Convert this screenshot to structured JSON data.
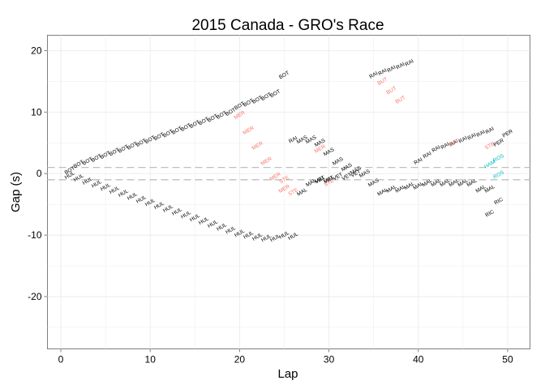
{
  "chart_data": {
    "type": "scatter",
    "title": "2015 Canada - GRO's Race",
    "xlabel": "Lap",
    "ylabel": "Gap (s)",
    "xlim": [
      -1.5,
      52.5
    ],
    "ylim": [
      -28.5,
      22.5
    ],
    "xticks": [
      0,
      10,
      20,
      30,
      40,
      50
    ],
    "yticks": [
      -20,
      -10,
      0,
      10,
      20
    ],
    "reference_lines": [
      1,
      -1
    ],
    "grid": true,
    "background": "#ffffff",
    "colors": {
      "grid": "#ebebeb",
      "frame": "#7f7f7f",
      "reference_line": "#bfbfbf",
      "default_label": "#000000",
      "highlight_red": "#f8766d",
      "highlight_teal": "#00bfc4"
    },
    "series": [
      {
        "label": "BOT",
        "color": "#000000",
        "x": [
          1,
          2,
          3,
          4,
          5,
          6,
          7,
          8,
          9,
          10,
          11,
          12,
          13,
          14,
          15,
          16,
          17,
          18,
          19,
          20,
          21,
          22,
          23,
          24,
          25
        ],
        "y": [
          0.5,
          1.5,
          2.0,
          2.5,
          3.0,
          3.5,
          4.0,
          4.5,
          5.0,
          5.5,
          6.0,
          6.5,
          7.0,
          7.5,
          8.0,
          8.5,
          9.0,
          9.5,
          10.0,
          11.0,
          11.5,
          12.0,
          12.5,
          13.0,
          16.0
        ]
      },
      {
        "label": "HUL",
        "color": "#000000",
        "x": [
          1,
          2,
          3,
          4,
          5,
          6,
          7,
          8,
          9,
          10,
          11,
          12,
          13,
          14,
          15,
          16,
          17,
          18,
          19,
          20,
          21,
          22,
          23,
          24,
          25,
          26
        ],
        "y": [
          -0.3,
          -0.7,
          -1.2,
          -1.7,
          -2.2,
          -2.7,
          -3.2,
          -3.7,
          -4.2,
          -4.7,
          -5.2,
          -5.7,
          -6.2,
          -6.7,
          -7.2,
          -7.7,
          -8.2,
          -8.7,
          -9.2,
          -9.7,
          -10.0,
          -10.3,
          -10.5,
          -10.5,
          -10.0,
          -10.2
        ]
      },
      {
        "label": "MER",
        "color": "#f8766d",
        "x": [
          20,
          21,
          22,
          23,
          24,
          25
        ],
        "y": [
          9.5,
          7.0,
          4.5,
          2.0,
          -0.5,
          -2.5
        ]
      },
      {
        "label": "STE",
        "color": "#f8766d",
        "x": [
          25,
          26
        ],
        "y": [
          -1.0,
          -3.0
        ]
      },
      {
        "label": "RAI",
        "color": "#000000",
        "x": [
          26,
          35,
          36,
          37,
          38,
          39,
          40,
          41,
          42,
          43,
          44,
          45,
          46,
          47,
          48
        ],
        "y": [
          5.5,
          16.0,
          16.5,
          17.0,
          17.5,
          18.0,
          2.0,
          3.0,
          4.0,
          4.5,
          5.0,
          5.5,
          6.0,
          6.5,
          7.0
        ]
      },
      {
        "label": "MAS",
        "color": "#000000",
        "x": [
          27,
          28,
          29,
          30,
          31,
          32,
          33,
          34,
          35
        ],
        "y": [
          5.5,
          5.5,
          5.0,
          3.5,
          2.0,
          1.0,
          0.5,
          0.0,
          -1.5
        ]
      },
      {
        "label": "MAL",
        "color": "#000000",
        "x": [
          27,
          28,
          29,
          30,
          36,
          37,
          38,
          39,
          40,
          41,
          42,
          43,
          44,
          45,
          46,
          47,
          48
        ],
        "y": [
          -3.0,
          -1.5,
          -1.0,
          -1.0,
          -3.0,
          -2.5,
          -2.5,
          -2.0,
          -2.0,
          -1.5,
          -1.5,
          -1.5,
          -1.5,
          -1.5,
          -1.5,
          -2.5,
          -2.5
        ]
      },
      {
        "label": "VET",
        "color": "#000000",
        "x": [
          29,
          30,
          31,
          32,
          33
        ],
        "y": [
          -1.0,
          -1.0,
          -0.5,
          -0.5,
          0.0
        ]
      },
      {
        "label": "MER",
        "color": "#f8766d",
        "x": [
          29
        ],
        "y": [
          4.0
        ]
      },
      {
        "label": "STE",
        "color": "#f8766d",
        "x": [
          30
        ],
        "y": [
          -1.5
        ]
      },
      {
        "label": "BUT",
        "color": "#f8766d",
        "x": [
          36,
          37,
          38,
          44
        ],
        "y": [
          15.0,
          13.5,
          12.0,
          5.0
        ]
      },
      {
        "label": "STE",
        "color": "#f8766d",
        "x": [
          48
        ],
        "y": [
          4.5
        ]
      },
      {
        "label": "PER",
        "color": "#000000",
        "x": [
          49,
          50
        ],
        "y": [
          5.0,
          6.5
        ]
      },
      {
        "label": "HAM",
        "color": "#00bfc4",
        "x": [
          48
        ],
        "y": [
          1.5
        ]
      },
      {
        "label": "ROS",
        "color": "#00bfc4",
        "x": [
          49,
          49
        ],
        "y": [
          2.5,
          -0.2
        ]
      },
      {
        "label": "RIC",
        "color": "#000000",
        "x": [
          48,
          49
        ],
        "y": [
          -6.5,
          -4.5
        ]
      }
    ]
  }
}
